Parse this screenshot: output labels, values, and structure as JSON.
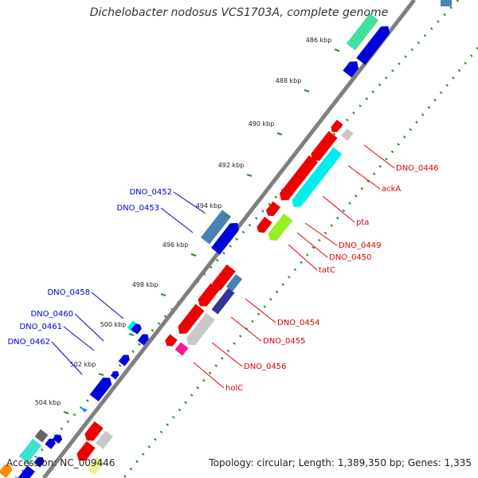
{
  "title": "Dichelobacter nodosus VCS1703A, complete genome",
  "footer": {
    "accession": "Accession: NC_009446",
    "summary": "Topology: circular; Length: 1,389,350 bp; Genes: 1,335"
  },
  "colors": {
    "backbone": "#7f7f7f",
    "tick": "#2e8b2e",
    "forward_label": "#0000cc",
    "reverse_label": "#dd0000"
  },
  "ticks": [
    "486 kbp",
    "488 kbp",
    "490 kbp",
    "492 kbp",
    "494 kbp",
    "496 kbp",
    "498 kbp",
    "500 kbp",
    "502 kbp",
    "504 kbp"
  ],
  "labels_left": [
    "DNO_0452",
    "DNO_0453",
    "DNO_0458",
    "DNO_0460",
    "DNO_0461",
    "DNO_0462"
  ],
  "labels_right": [
    "DNO_0446",
    "ackA",
    "pta",
    "DNO_0449",
    "DNO_0450",
    "tatC",
    "DNO_0454",
    "DNO_0455",
    "DNO_0456",
    "holC"
  ]
}
